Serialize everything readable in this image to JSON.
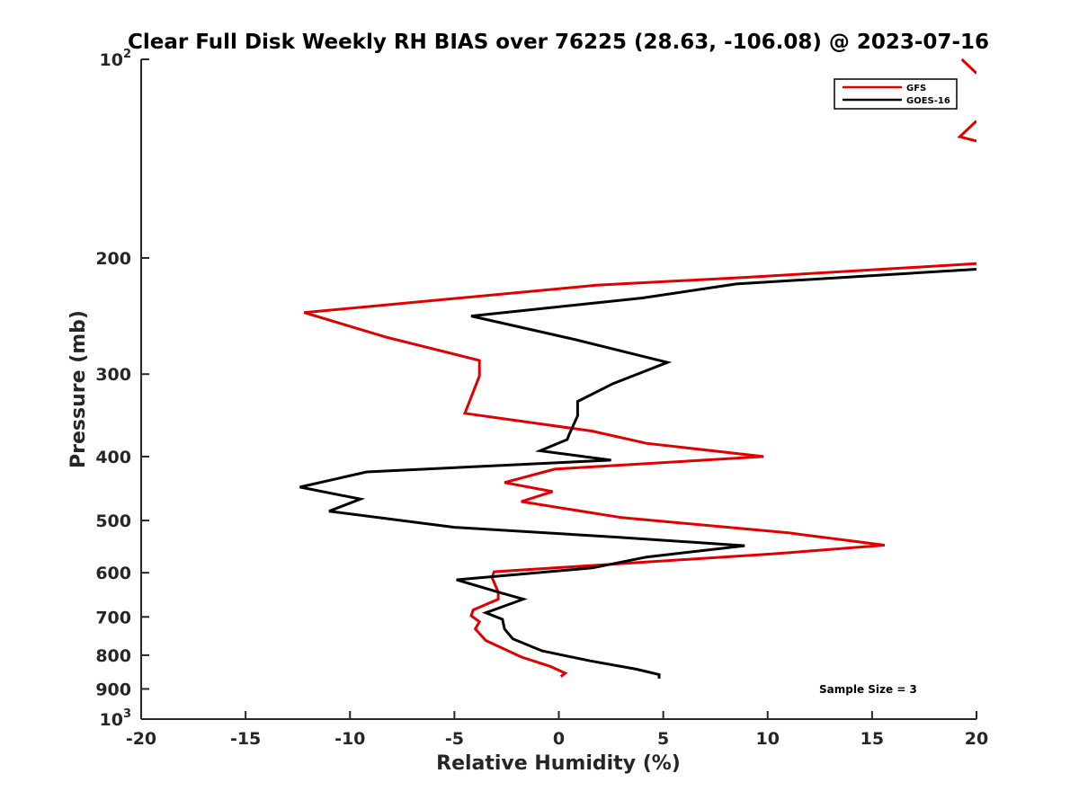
{
  "chart_data": {
    "type": "line",
    "title": "Clear Full Disk Weekly RH BIAS over 76225 (28.63, -106.08) @ 2023-07-16",
    "xlabel": "Relative Humidity (%)",
    "ylabel": "Pressure (mb)",
    "xlim": [
      -20,
      20
    ],
    "ylim": [
      100,
      1000
    ],
    "y_scale": "log",
    "y_reversed": true,
    "x_ticks": [
      -20,
      -15,
      -10,
      -5,
      0,
      5,
      10,
      15,
      20
    ],
    "x_tick_labels": [
      "-20",
      "-15",
      "-10",
      "-5",
      "0",
      "5",
      "10",
      "15",
      "20"
    ],
    "y_ticks": [
      200,
      300,
      400,
      500,
      600,
      700,
      800,
      900
    ],
    "y_tick_labels": [
      "200",
      "300",
      "400",
      "500",
      "600",
      "700",
      "800",
      "900"
    ],
    "y_edge_labels": [
      {
        "base": "10",
        "exp": "2",
        "value": 100
      },
      {
        "base": "10",
        "exp": "3",
        "value": 1000
      }
    ],
    "grid": false,
    "legend_position": "top-right",
    "annotation": "Sample Size = 3",
    "series": [
      {
        "name": "GFS",
        "color": "#e00000",
        "segments": [
          [
            [
              19.3,
              100
            ],
            [
              20.0,
              105
            ]
          ],
          [
            [
              20.0,
              124
            ],
            [
              19.2,
              131
            ],
            [
              20.0,
              133
            ]
          ],
          [
            [
              20.0,
              204
            ],
            [
              9.0,
              214
            ],
            [
              1.8,
              220
            ],
            [
              -12.2,
              242
            ],
            [
              -8.2,
              264
            ],
            [
              -3.8,
              286
            ],
            [
              -3.8,
              302
            ],
            [
              -4.5,
              344
            ],
            [
              1.6,
              366
            ],
            [
              4.2,
              382
            ],
            [
              9.8,
              400
            ],
            [
              -0.2,
              418
            ],
            [
              -2.6,
              438
            ],
            [
              -0.3,
              452
            ],
            [
              -1.8,
              468
            ],
            [
              3.0,
              495
            ],
            [
              11.0,
              522
            ],
            [
              15.6,
              545
            ],
            [
              10.2,
              562
            ],
            [
              -3.1,
              598
            ],
            [
              -3.2,
              610
            ],
            [
              -2.9,
              642
            ],
            [
              -2.9,
              658
            ],
            [
              -4.1,
              683
            ],
            [
              -4.2,
              697
            ],
            [
              -3.8,
              712
            ],
            [
              -4.0,
              730
            ],
            [
              -3.5,
              760
            ],
            [
              -1.8,
              805
            ],
            [
              -0.4,
              832
            ],
            [
              0.3,
              852
            ],
            [
              0.1,
              862
            ]
          ]
        ]
      },
      {
        "name": "GOES-16",
        "color": "#000000",
        "segments": [
          [
            [
              20.0,
              208
            ],
            [
              8.5,
              219
            ],
            [
              4.0,
              230
            ],
            [
              -4.2,
              245
            ],
            [
              0.8,
              266
            ],
            [
              5.2,
              288
            ],
            [
              2.6,
              310
            ],
            [
              0.9,
              330
            ],
            [
              0.9,
              347
            ],
            [
              0.5,
              370
            ],
            [
              0.4,
              377
            ],
            [
              -0.9,
              392
            ],
            [
              2.5,
              405
            ],
            [
              -9.2,
              422
            ],
            [
              -12.4,
              445
            ],
            [
              -9.5,
              464
            ],
            [
              -11.0,
              484
            ],
            [
              -5.0,
              512
            ],
            [
              2.8,
              530
            ],
            [
              8.9,
              546
            ],
            [
              4.2,
              568
            ],
            [
              1.6,
              590
            ],
            [
              -4.9,
              615
            ],
            [
              -2.9,
              642
            ],
            [
              -1.7,
              658
            ],
            [
              -3.5,
              690
            ],
            [
              -2.7,
              706
            ],
            [
              -2.6,
              730
            ],
            [
              -2.2,
              756
            ],
            [
              -0.8,
              788
            ],
            [
              1.5,
              816
            ],
            [
              3.7,
              840
            ],
            [
              4.8,
              856
            ],
            [
              4.8,
              868
            ]
          ]
        ]
      }
    ]
  }
}
